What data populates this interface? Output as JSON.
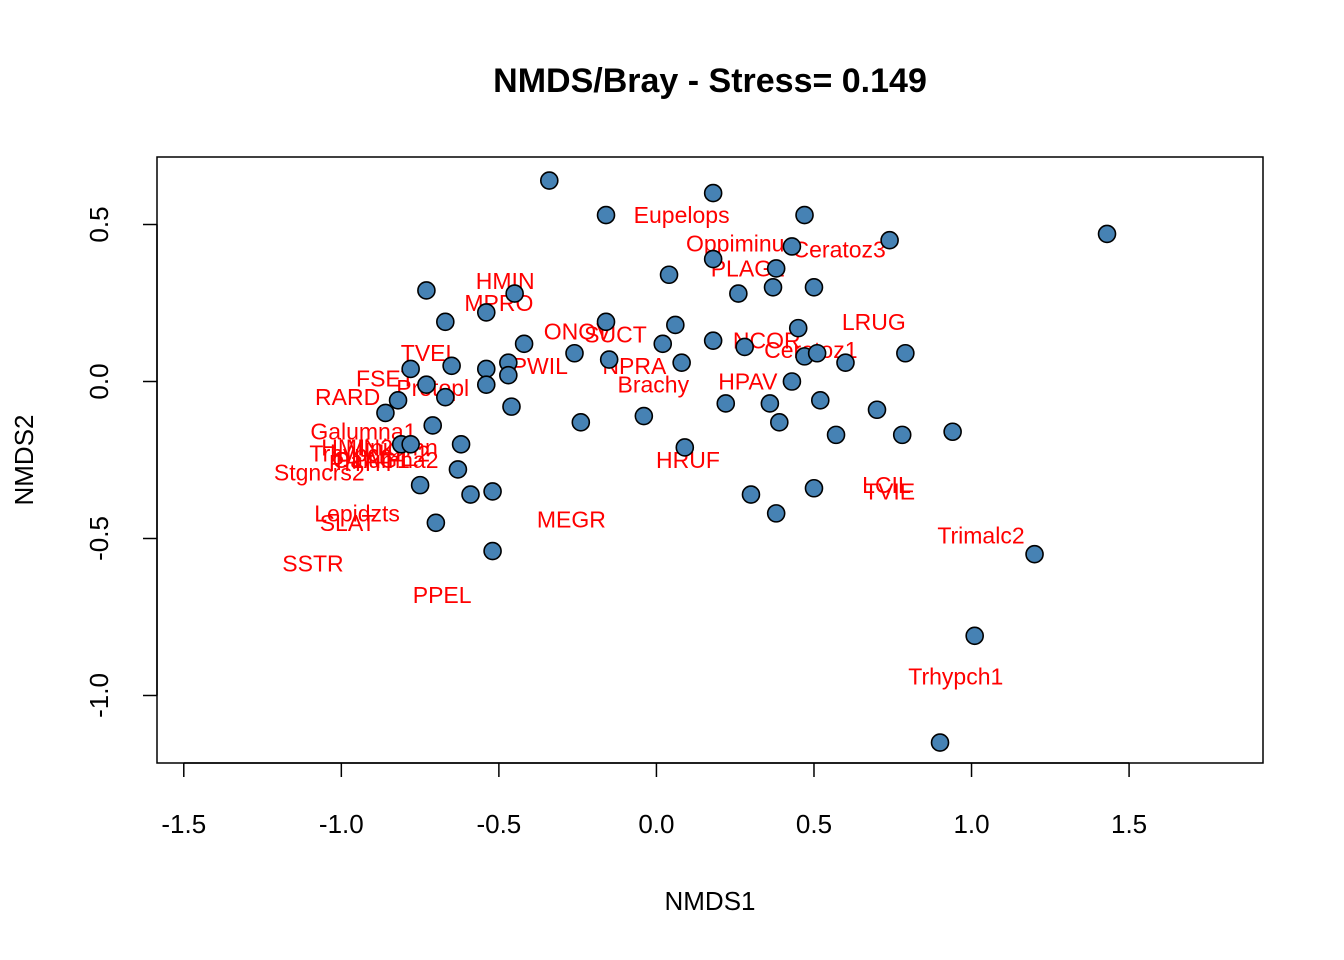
{
  "chart_data": {
    "type": "scatter",
    "title": "NMDS/Bray - Stress= 0.149",
    "xlabel": "NMDS1",
    "ylabel": "NMDS2",
    "xlim": [
      -1.585,
      1.925
    ],
    "ylim": [
      -1.215,
      0.715
    ],
    "xticks": [
      -1.5,
      -1.0,
      -0.5,
      0.0,
      0.5,
      1.0,
      1.5
    ],
    "xtick_labels": [
      "-1.5",
      "-1.0",
      "-0.5",
      "0.0",
      "0.5",
      "1.0",
      "1.5"
    ],
    "yticks": [
      -1.0,
      -0.5,
      0.0,
      0.5
    ],
    "ytick_labels": [
      "-1.0",
      "-0.5",
      "0.0",
      "0.5"
    ],
    "grid": false,
    "point_color": "#4682B4",
    "label_color": "#FF0000",
    "sites": [
      {
        "x": -0.34,
        "y": 0.64
      },
      {
        "x": 0.18,
        "y": 0.6
      },
      {
        "x": -0.16,
        "y": 0.53
      },
      {
        "x": 0.47,
        "y": 0.53
      },
      {
        "x": 0.74,
        "y": 0.45
      },
      {
        "x": 1.43,
        "y": 0.47
      },
      {
        "x": 0.43,
        "y": 0.43
      },
      {
        "x": 0.18,
        "y": 0.39
      },
      {
        "x": 0.38,
        "y": 0.36
      },
      {
        "x": 0.04,
        "y": 0.34
      },
      {
        "x": 0.37,
        "y": 0.3
      },
      {
        "x": 0.5,
        "y": 0.3
      },
      {
        "x": 0.26,
        "y": 0.28
      },
      {
        "x": -0.73,
        "y": 0.29
      },
      {
        "x": -0.45,
        "y": 0.28
      },
      {
        "x": -0.54,
        "y": 0.22
      },
      {
        "x": -0.67,
        "y": 0.19
      },
      {
        "x": -0.16,
        "y": 0.19
      },
      {
        "x": 0.06,
        "y": 0.18
      },
      {
        "x": 0.45,
        "y": 0.17
      },
      {
        "x": 0.18,
        "y": 0.13
      },
      {
        "x": -0.42,
        "y": 0.12
      },
      {
        "x": 0.02,
        "y": 0.12
      },
      {
        "x": 0.28,
        "y": 0.11
      },
      {
        "x": -0.26,
        "y": 0.09
      },
      {
        "x": 0.79,
        "y": 0.09
      },
      {
        "x": 0.47,
        "y": 0.08
      },
      {
        "x": 0.51,
        "y": 0.09
      },
      {
        "x": -0.15,
        "y": 0.07
      },
      {
        "x": 0.08,
        "y": 0.06
      },
      {
        "x": 0.6,
        "y": 0.06
      },
      {
        "x": -0.47,
        "y": 0.06
      },
      {
        "x": -0.65,
        "y": 0.05
      },
      {
        "x": -0.78,
        "y": 0.04
      },
      {
        "x": -0.54,
        "y": 0.04
      },
      {
        "x": -0.47,
        "y": 0.02
      },
      {
        "x": -0.73,
        "y": -0.01
      },
      {
        "x": -0.54,
        "y": -0.01
      },
      {
        "x": 0.43,
        "y": 0.0
      },
      {
        "x": -0.67,
        "y": -0.05
      },
      {
        "x": -0.82,
        "y": -0.06
      },
      {
        "x": 0.52,
        "y": -0.06
      },
      {
        "x": 0.22,
        "y": -0.07
      },
      {
        "x": 0.36,
        "y": -0.07
      },
      {
        "x": -0.46,
        "y": -0.08
      },
      {
        "x": 0.7,
        "y": -0.09
      },
      {
        "x": -0.86,
        "y": -0.1
      },
      {
        "x": -0.04,
        "y": -0.11
      },
      {
        "x": -0.24,
        "y": -0.13
      },
      {
        "x": 0.39,
        "y": -0.13
      },
      {
        "x": -0.71,
        "y": -0.14
      },
      {
        "x": 0.57,
        "y": -0.17
      },
      {
        "x": 0.94,
        "y": -0.16
      },
      {
        "x": 0.78,
        "y": -0.17
      },
      {
        "x": -0.81,
        "y": -0.2
      },
      {
        "x": -0.78,
        "y": -0.2
      },
      {
        "x": -0.62,
        "y": -0.2
      },
      {
        "x": 0.09,
        "y": -0.21
      },
      {
        "x": -0.63,
        "y": -0.28
      },
      {
        "x": -0.75,
        "y": -0.33
      },
      {
        "x": 0.5,
        "y": -0.34
      },
      {
        "x": -0.52,
        "y": -0.35
      },
      {
        "x": -0.59,
        "y": -0.36
      },
      {
        "x": 0.3,
        "y": -0.36
      },
      {
        "x": 0.38,
        "y": -0.42
      },
      {
        "x": -0.7,
        "y": -0.45
      },
      {
        "x": -0.52,
        "y": -0.54
      },
      {
        "x": 1.2,
        "y": -0.55
      },
      {
        "x": 1.01,
        "y": -0.81
      },
      {
        "x": 0.9,
        "y": -1.15
      }
    ],
    "species": [
      {
        "label": "Eupelops",
        "x": 0.08,
        "y": 0.53
      },
      {
        "label": "Oppiminu",
        "x": 0.25,
        "y": 0.44
      },
      {
        "label": "Ceratoz3",
        "x": 0.58,
        "y": 0.42
      },
      {
        "label": "PLAG2",
        "x": 0.29,
        "y": 0.36
      },
      {
        "label": "HMIN",
        "x": -0.48,
        "y": 0.32
      },
      {
        "label": "MPRO",
        "x": -0.5,
        "y": 0.25
      },
      {
        "label": "LRUG",
        "x": 0.69,
        "y": 0.19
      },
      {
        "label": "ONOV",
        "x": -0.25,
        "y": 0.16
      },
      {
        "label": "SUCT",
        "x": -0.13,
        "y": 0.15
      },
      {
        "label": "NCOR",
        "x": 0.35,
        "y": 0.13
      },
      {
        "label": "Ceratoz1",
        "x": 0.49,
        "y": 0.1
      },
      {
        "label": "TVEL",
        "x": -0.72,
        "y": 0.09
      },
      {
        "label": "PWIL",
        "x": -0.37,
        "y": 0.05
      },
      {
        "label": "NPRA",
        "x": -0.07,
        "y": 0.05
      },
      {
        "label": "FSET",
        "x": -0.86,
        "y": 0.01
      },
      {
        "label": "HPAV",
        "x": 0.29,
        "y": 0.0
      },
      {
        "label": "Brachy",
        "x": -0.01,
        "y": -0.01
      },
      {
        "label": "Protopl",
        "x": -0.71,
        "y": -0.02
      },
      {
        "label": "RARD",
        "x": -0.98,
        "y": -0.05
      },
      {
        "label": "Galumna1",
        "x": -0.93,
        "y": -0.16
      },
      {
        "label": "HMIN2",
        "x": -0.95,
        "y": -0.21
      },
      {
        "label": "Miniglmn",
        "x": -0.84,
        "y": -0.21
      },
      {
        "label": "PLAG1",
        "x": -0.9,
        "y": -0.25
      },
      {
        "label": "Trhypch1_2",
        "x": -0.91,
        "y": -0.23
      },
      {
        "label": "Galumna2",
        "x": -0.86,
        "y": -0.25
      },
      {
        "label": "PHTH",
        "x": -0.94,
        "y": -0.26
      },
      {
        "label": "Stgncrs2",
        "x": -1.07,
        "y": -0.29
      },
      {
        "label": "HRUF",
        "x": 0.1,
        "y": -0.25
      },
      {
        "label": "LCIL",
        "x": 0.73,
        "y": -0.33
      },
      {
        "label": "TVIE",
        "x": 0.74,
        "y": -0.35
      },
      {
        "label": "Lepidzts",
        "x": -0.95,
        "y": -0.42
      },
      {
        "label": "SLAT",
        "x": -0.98,
        "y": -0.45
      },
      {
        "label": "MEGR",
        "x": -0.27,
        "y": -0.44
      },
      {
        "label": "Trimalc2",
        "x": 1.03,
        "y": -0.49
      },
      {
        "label": "SSTR",
        "x": -1.09,
        "y": -0.58
      },
      {
        "label": "PPEL",
        "x": -0.68,
        "y": -0.68
      },
      {
        "label": "Trhypch1",
        "x": 0.95,
        "y": -0.94
      }
    ]
  }
}
